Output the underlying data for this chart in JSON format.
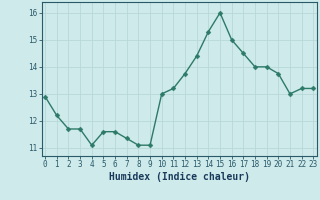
{
  "x": [
    0,
    1,
    2,
    3,
    4,
    5,
    6,
    7,
    8,
    9,
    10,
    11,
    12,
    13,
    14,
    15,
    16,
    17,
    18,
    19,
    20,
    21,
    22,
    23
  ],
  "y": [
    12.9,
    12.2,
    11.7,
    11.7,
    11.1,
    11.6,
    11.6,
    11.35,
    11.1,
    11.1,
    13.0,
    13.2,
    13.75,
    14.4,
    15.3,
    16.0,
    15.0,
    14.5,
    14.0,
    14.0,
    13.75,
    13.0,
    13.2,
    13.2
  ],
  "line_color": "#2d7a68",
  "marker_color": "#2d7a68",
  "bg_color": "#ceeaea",
  "grid_major_color": "#b8d8d8",
  "grid_minor_color": "#d4ecec",
  "xlabel": "Humidex (Indice chaleur)",
  "xlabel_color": "#1a3a5c",
  "axis_color": "#2a5a6a",
  "ylim": [
    10.7,
    16.4
  ],
  "xlim": [
    -0.3,
    23.3
  ],
  "yticks": [
    11,
    12,
    13,
    14,
    15,
    16
  ],
  "xticks": [
    0,
    1,
    2,
    3,
    4,
    5,
    6,
    7,
    8,
    9,
    10,
    11,
    12,
    13,
    14,
    15,
    16,
    17,
    18,
    19,
    20,
    21,
    22,
    23
  ],
  "tick_fontsize": 5.5,
  "xlabel_fontsize": 7,
  "line_width": 1.0,
  "marker_size": 2.5
}
